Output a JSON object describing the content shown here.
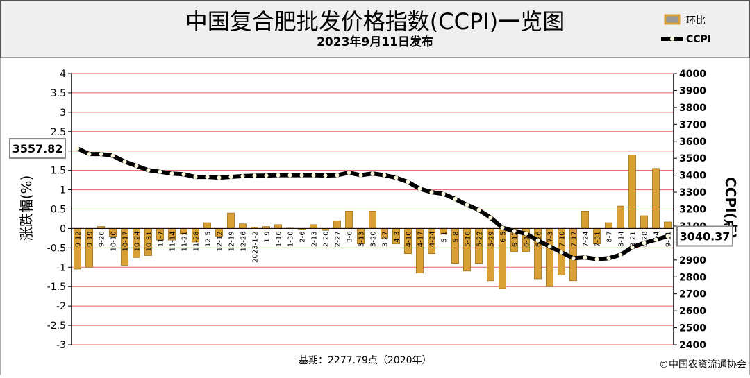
{
  "chart_data": {
    "type": "bar-line",
    "title": "中国复合肥批发价格指数(CCPI)一览图",
    "subtitle": "2023年9月11日发布",
    "y_label": "涨跌幅(%)",
    "y2_label": "CCPI(点)",
    "footnote": "基期：2277.79点（2020年）",
    "source": "©中国农资流通协会",
    "categories": [
      "9-12",
      "9-19",
      "9-26",
      "10-10",
      "10-17",
      "10-24",
      "10-31",
      "11-7",
      "11-14",
      "11-21",
      "11-28",
      "12-5",
      "12-12",
      "12-19",
      "12-26",
      "2023-1-2",
      "1-9",
      "1-16",
      "1-30",
      "2-6",
      "2-13",
      "2-20",
      "2-27",
      "3-6",
      "3-13",
      "3-20",
      "3-27",
      "4-3",
      "4-10",
      "4-17",
      "4-24",
      "5-1",
      "5-8",
      "5-16",
      "5-22",
      "5-29",
      "6-5",
      "6-12",
      "6-19",
      "6-26",
      "7-3",
      "7-10",
      "7-17",
      "7-24",
      "7-31",
      "8-7",
      "8-14",
      "8-21",
      "8-28",
      "9-4",
      "9-11"
    ],
    "series": [
      {
        "name": "环比",
        "color": "#d9a035",
        "values": [
          -1.05,
          -1.0,
          0.05,
          -0.2,
          -0.95,
          -0.75,
          -0.7,
          -0.3,
          -0.3,
          -0.15,
          -0.35,
          0.15,
          -0.2,
          0.4,
          0.12,
          0.03,
          0.05,
          0.1,
          0.01,
          -0.02,
          0.1,
          -0.05,
          0.2,
          0.45,
          -0.4,
          0.45,
          -0.25,
          -0.4,
          -0.65,
          -1.15,
          -0.65,
          -0.15,
          -0.9,
          -1.1,
          -0.9,
          -1.35,
          -1.55,
          -0.6,
          -0.6,
          -1.3,
          -1.5,
          -1.2,
          -1.35,
          0.45,
          -0.4,
          0.15,
          0.58,
          1.9,
          0.33,
          1.55,
          0.17
        ]
      },
      {
        "name": "CCPI",
        "color": "#000000",
        "axis": "y2",
        "values": [
          3557.82,
          3525,
          3525,
          3515,
          3480,
          3455,
          3430,
          3420,
          3410,
          3405,
          3390,
          3390,
          3385,
          3390,
          3395,
          3397,
          3398,
          3400,
          3400,
          3400,
          3400,
          3398,
          3400,
          3415,
          3400,
          3410,
          3400,
          3385,
          3360,
          3320,
          3300,
          3290,
          3260,
          3225,
          3195,
          3150,
          3090,
          3070,
          3055,
          3015,
          2980,
          2945,
          2910,
          2915,
          2905,
          2910,
          2930,
          2975,
          3000,
          3020,
          3040.37
        ],
        "value_labels": [
          "3557.82",
          null,
          null,
          null,
          null,
          null,
          null,
          null,
          null,
          null,
          null,
          null,
          null,
          null,
          null,
          null,
          null,
          null,
          null,
          null,
          null,
          null,
          null,
          null,
          null,
          null,
          null,
          null,
          null,
          null,
          null,
          null,
          null,
          null,
          null,
          null,
          null,
          null,
          null,
          null,
          null,
          null,
          null,
          null,
          null,
          null,
          null,
          null,
          null,
          null,
          "3040.37"
        ]
      }
    ],
    "ylim": [
      -3,
      4
    ],
    "yticks": [
      -3,
      -2.5,
      -2,
      -1.5,
      -1,
      -0.5,
      0,
      0.5,
      1,
      1.5,
      2,
      2.5,
      3,
      3.5,
      4
    ],
    "y2lim": [
      2400,
      4000
    ],
    "y2ticks": [
      2400,
      2500,
      2600,
      2700,
      2800,
      2900,
      3000,
      3100,
      3200,
      3300,
      3400,
      3500,
      3600,
      3700,
      3800,
      3900,
      4000
    ],
    "grid": true,
    "grid_color": "#e06060",
    "legend": "upper right"
  }
}
